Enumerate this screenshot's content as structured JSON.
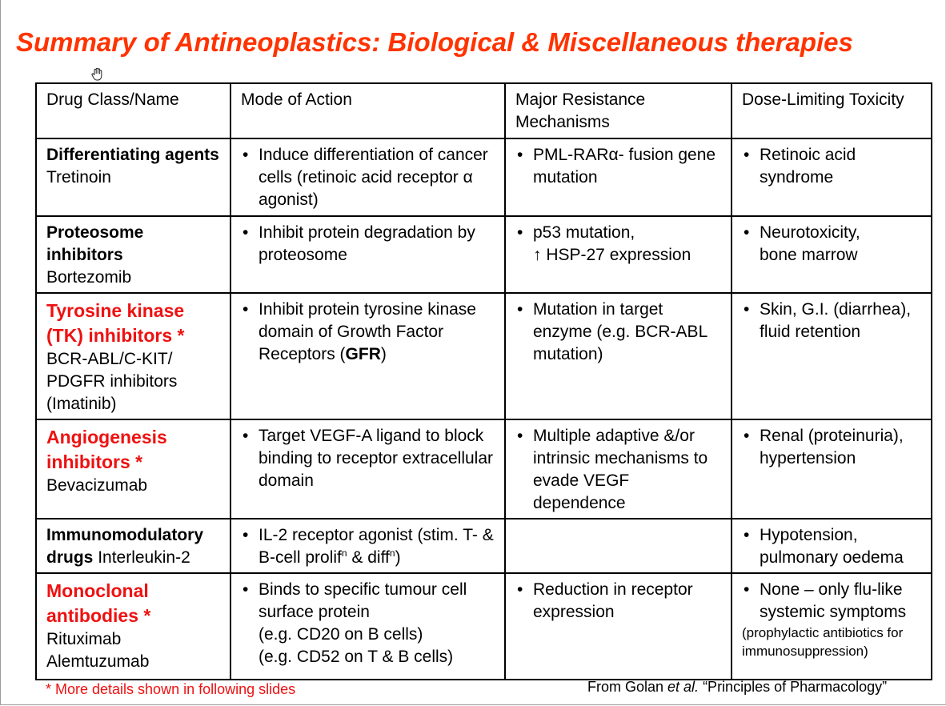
{
  "slide": {
    "title": "Summary of Antineoplastics: Biological & Miscellaneous therapies",
    "footnote": "* More details shown in following slides",
    "source_prefix": "From Golan ",
    "source_italic": "et al.",
    "source_suffix": " “Principles of Pharmacology”"
  },
  "table": {
    "headers": {
      "col1_bold": "Drug Class/",
      "col1_rest": "Name",
      "col2": "Mode of Action",
      "col3": "Major Resistance Mechanisms",
      "col4": "Dose-Limiting Toxicity"
    },
    "rows": [
      {
        "class": "Differentiating agents",
        "name": "Tretinoin",
        "moa": "Induce differentiation of cancer cells (retinoic acid receptor α agonist)",
        "resistance": "PML-RARα- fusion gene mutation",
        "toxicity": "Retinoic acid syndrome"
      },
      {
        "class": "Proteosome inhibitors",
        "name": "Bortezomib",
        "moa": "Inhibit protein degradation by proteosome",
        "resistance_line1": "p53 mutation,",
        "resistance_line2": "↑ HSP-27 expression",
        "toxicity_line1": "Neurotoxicity,",
        "toxicity_line2": "bone marrow"
      },
      {
        "class": "Tyrosine kinase (TK) inhibitors *",
        "name": "BCR-ABL/C-KIT/ PDGFR inhibitors (Imatinib)",
        "moa_main": "Inhibit protein tyrosine kinase domain of Growth Factor Receptors (",
        "moa_bold": "GFR",
        "moa_end": ")",
        "resistance": "Mutation in target enzyme (e.g. BCR-ABL mutation)",
        "toxicity": "Skin, G.I. (diarrhea), fluid retention"
      },
      {
        "class": "Angiogenesis inhibitors *",
        "name": "Bevacizumab",
        "moa": "Target VEGF-A ligand to block binding to receptor extracellular domain",
        "resistance": "Multiple adaptive &/or intrinsic mechanisms to evade VEGF dependence",
        "toxicity": "Renal (proteinuria), hypertension"
      },
      {
        "class": "Immunomodulatory drugs",
        "name": "Interleukin-2",
        "moa_a": "IL-2 receptor agonist (stim. T- & B-cell prolif",
        "moa_sup1": "n",
        "moa_b": " & diff",
        "moa_sup2": "n",
        "moa_c": ")",
        "resistance": "",
        "toxicity_line1": "Hypotension,",
        "toxicity_line2": "pulmonary oedema"
      },
      {
        "class": "Monoclonal antibodies *",
        "name_line1": "Rituximab",
        "name_line2": "Alemtuzumab",
        "moa_line1": "Binds to specific tumour cell surface protein",
        "moa_line2": "(e.g. CD20 on B cells)",
        "moa_line3": "(e.g. CD52 on T & B cells)",
        "resistance": "Reduction in receptor expression",
        "toxicity_main": "None – only flu-like systemic symptoms",
        "toxicity_note": "(prophylactic antibiotics for immunosuppression)"
      }
    ]
  }
}
